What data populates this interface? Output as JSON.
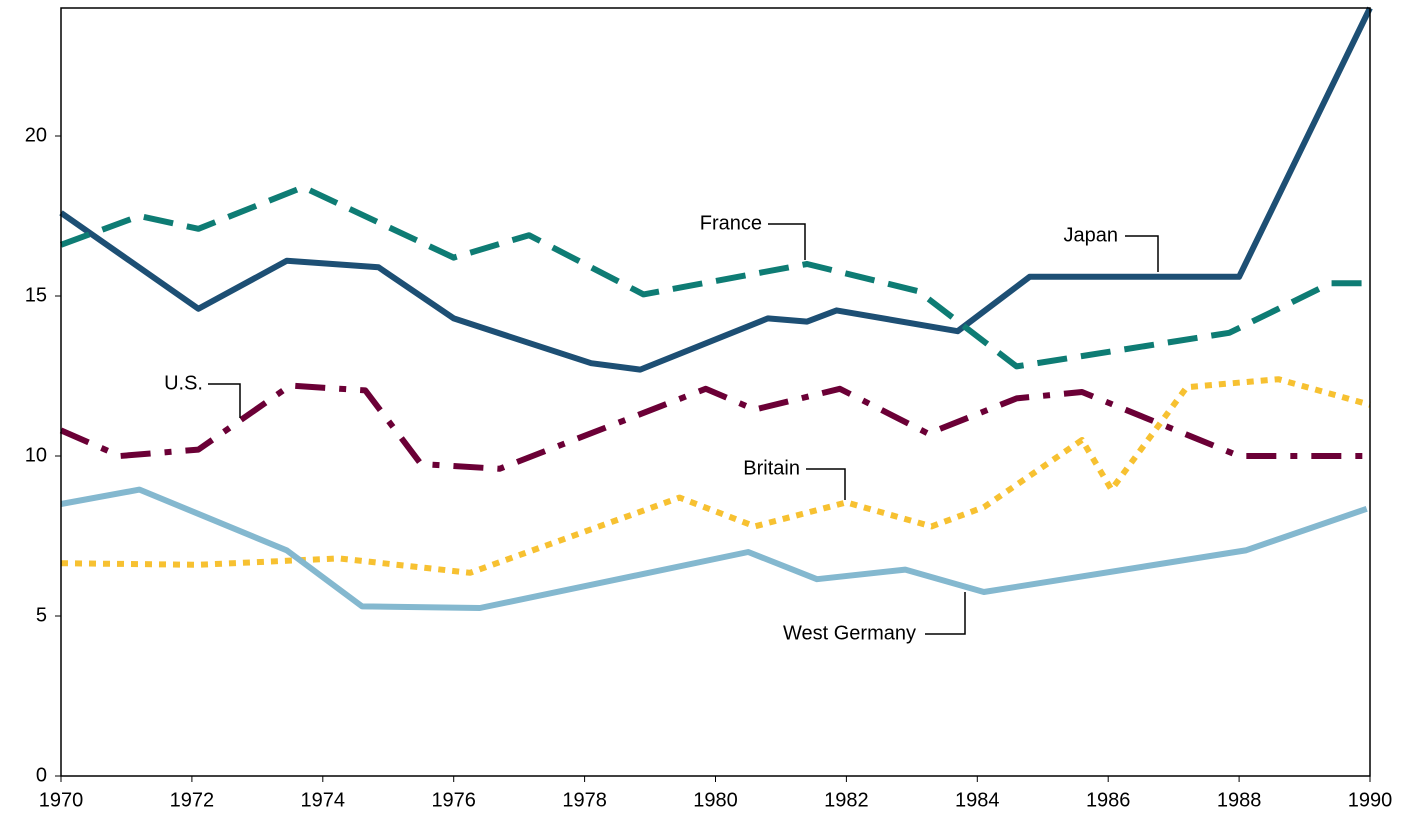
{
  "chart_data": {
    "type": "line",
    "xlim": [
      1970,
      1990
    ],
    "xticks": [
      1970,
      1972,
      1974,
      1976,
      1978,
      1980,
      1982,
      1984,
      1986,
      1988,
      1990
    ],
    "ylim": [
      0,
      24
    ],
    "yticks": [
      0,
      5,
      10,
      15,
      20
    ],
    "grid": false,
    "series": [
      {
        "name": "Japan",
        "color": "#1d4f74",
        "dash": "solid",
        "x": [
          1970,
          1972.1,
          1973.45,
          1974.85,
          1976.0,
          1978.1,
          1978.85,
          1980.8,
          1981.4,
          1981.85,
          1983.7,
          1984.8,
          1988.0,
          1990
        ],
        "values": [
          17.6,
          14.6,
          16.1,
          15.9,
          14.3,
          12.9,
          12.7,
          14.3,
          14.2,
          14.55,
          13.9,
          15.6,
          15.6,
          24.0
        ]
      },
      {
        "name": "France",
        "color": "#0e7c74",
        "dash": "dashed",
        "x": [
          1970,
          1971.2,
          1972.1,
          1973.7,
          1976.0,
          1977.15,
          1978.9,
          1981.4,
          1983.1,
          1984.6,
          1987.85,
          1989.4,
          1990
        ],
        "values": [
          16.6,
          17.5,
          17.1,
          18.4,
          16.2,
          16.9,
          15.05,
          16.0,
          15.15,
          12.8,
          13.85,
          15.4,
          15.4
        ]
      },
      {
        "name": "U.S.",
        "color": "#6b0036",
        "dash": "dashdot",
        "x": [
          1970,
          1970.9,
          1972.1,
          1973.5,
          1974.65,
          1975.5,
          1976.7,
          1979.85,
          1980.6,
          1981.9,
          1983.25,
          1984.6,
          1985.6,
          1988.0,
          1990
        ],
        "values": [
          10.8,
          10.0,
          10.2,
          12.2,
          12.05,
          9.75,
          9.6,
          12.1,
          11.45,
          12.1,
          10.7,
          11.8,
          12.0,
          10.0,
          10.0
        ]
      },
      {
        "name": "Britain",
        "color": "#f7c131",
        "dash": "dotted",
        "x": [
          1970,
          1972.1,
          1974.25,
          1976.25,
          1979.45,
          1980.6,
          1982.0,
          1983.3,
          1984.1,
          1985.6,
          1986.05,
          1987.2,
          1988.6,
          1990
        ],
        "values": [
          6.65,
          6.6,
          6.8,
          6.35,
          8.7,
          7.8,
          8.55,
          7.8,
          8.4,
          10.5,
          8.95,
          12.15,
          12.4,
          11.6
        ]
      },
      {
        "name": "West Germany",
        "color": "#84b8cf",
        "dash": "solid",
        "x": [
          1970,
          1971.2,
          1973.45,
          1974.6,
          1976.4,
          1980.5,
          1981.55,
          1982.9,
          1984.1,
          1988.1,
          1989.95
        ],
        "values": [
          8.5,
          8.95,
          7.05,
          5.3,
          5.25,
          7.0,
          6.15,
          6.45,
          5.75,
          7.05,
          8.35
        ]
      }
    ]
  }
}
